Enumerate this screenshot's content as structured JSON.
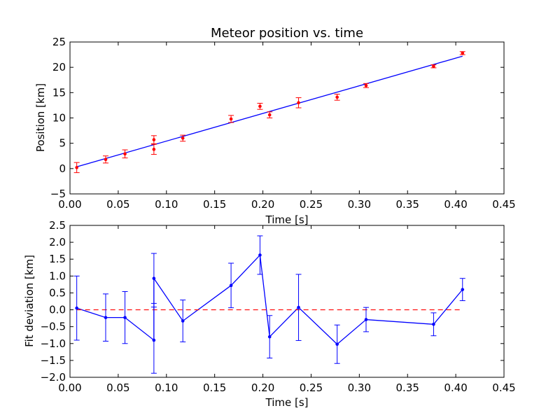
{
  "chart_data": [
    {
      "type": "scatter",
      "title": "Meteor position vs. time",
      "xlabel": "Time [s]",
      "ylabel": "Position [km]",
      "xlim": [
        0.0,
        0.45
      ],
      "ylim": [
        -5,
        25
      ],
      "xticks": [
        "0.00",
        "0.05",
        "0.10",
        "0.15",
        "0.20",
        "0.25",
        "0.30",
        "0.35",
        "0.40",
        "0.45"
      ],
      "yticks": [
        "−5",
        "0",
        "5",
        "10",
        "15",
        "20",
        "25"
      ],
      "grid": false,
      "colors": {
        "data": "#ff0000",
        "fit": "#0000ff"
      },
      "series": [
        {
          "kind": "errorbar-points",
          "x": [
            0.007,
            0.037,
            0.057,
            0.087,
            0.087,
            0.117,
            0.167,
            0.197,
            0.207,
            0.237,
            0.277,
            0.307,
            0.377,
            0.407
          ],
          "y": [
            0.2,
            1.8,
            2.9,
            5.7,
            3.8,
            6.0,
            9.8,
            12.3,
            10.6,
            13.0,
            14.1,
            16.4,
            20.2,
            22.8
          ],
          "yerr": [
            1.0,
            0.7,
            0.8,
            0.8,
            1.0,
            0.6,
            0.7,
            0.6,
            0.6,
            1.0,
            0.6,
            0.4,
            0.3,
            0.3
          ]
        },
        {
          "kind": "line",
          "x": [
            0.007,
            0.407
          ],
          "y": [
            0.35,
            22.2
          ]
        }
      ]
    },
    {
      "type": "line",
      "title": "",
      "xlabel": "Time [s]",
      "ylabel": "Fit deviation [km]",
      "xlim": [
        0.0,
        0.45
      ],
      "ylim": [
        -2.0,
        2.5
      ],
      "xticks": [
        "0.00",
        "0.05",
        "0.10",
        "0.15",
        "0.20",
        "0.25",
        "0.30",
        "0.35",
        "0.40",
        "0.45"
      ],
      "yticks": [
        "−2.0",
        "−1.5",
        "−1.0",
        "−0.5",
        "0.0",
        "0.5",
        "1.0",
        "1.5",
        "2.0",
        "2.5"
      ],
      "grid": false,
      "colors": {
        "data": "#0000ff",
        "zero": "#ff0000"
      },
      "series": [
        {
          "kind": "errorbar-line",
          "x": [
            0.007,
            0.037,
            0.057,
            0.087,
            0.087,
            0.117,
            0.167,
            0.197,
            0.207,
            0.237,
            0.277,
            0.307,
            0.377,
            0.407
          ],
          "y": [
            0.05,
            -0.23,
            -0.23,
            -0.9,
            0.93,
            -0.33,
            0.72,
            1.62,
            -0.8,
            0.07,
            -1.02,
            -0.29,
            -0.43,
            0.6
          ],
          "yerr": [
            0.95,
            0.7,
            0.77,
            0.98,
            0.74,
            0.62,
            0.66,
            0.57,
            0.63,
            0.98,
            0.57,
            0.36,
            0.34,
            0.33
          ]
        },
        {
          "kind": "dashed-line",
          "x": [
            0.007,
            0.407
          ],
          "y": [
            0.0,
            0.0
          ]
        }
      ]
    }
  ]
}
